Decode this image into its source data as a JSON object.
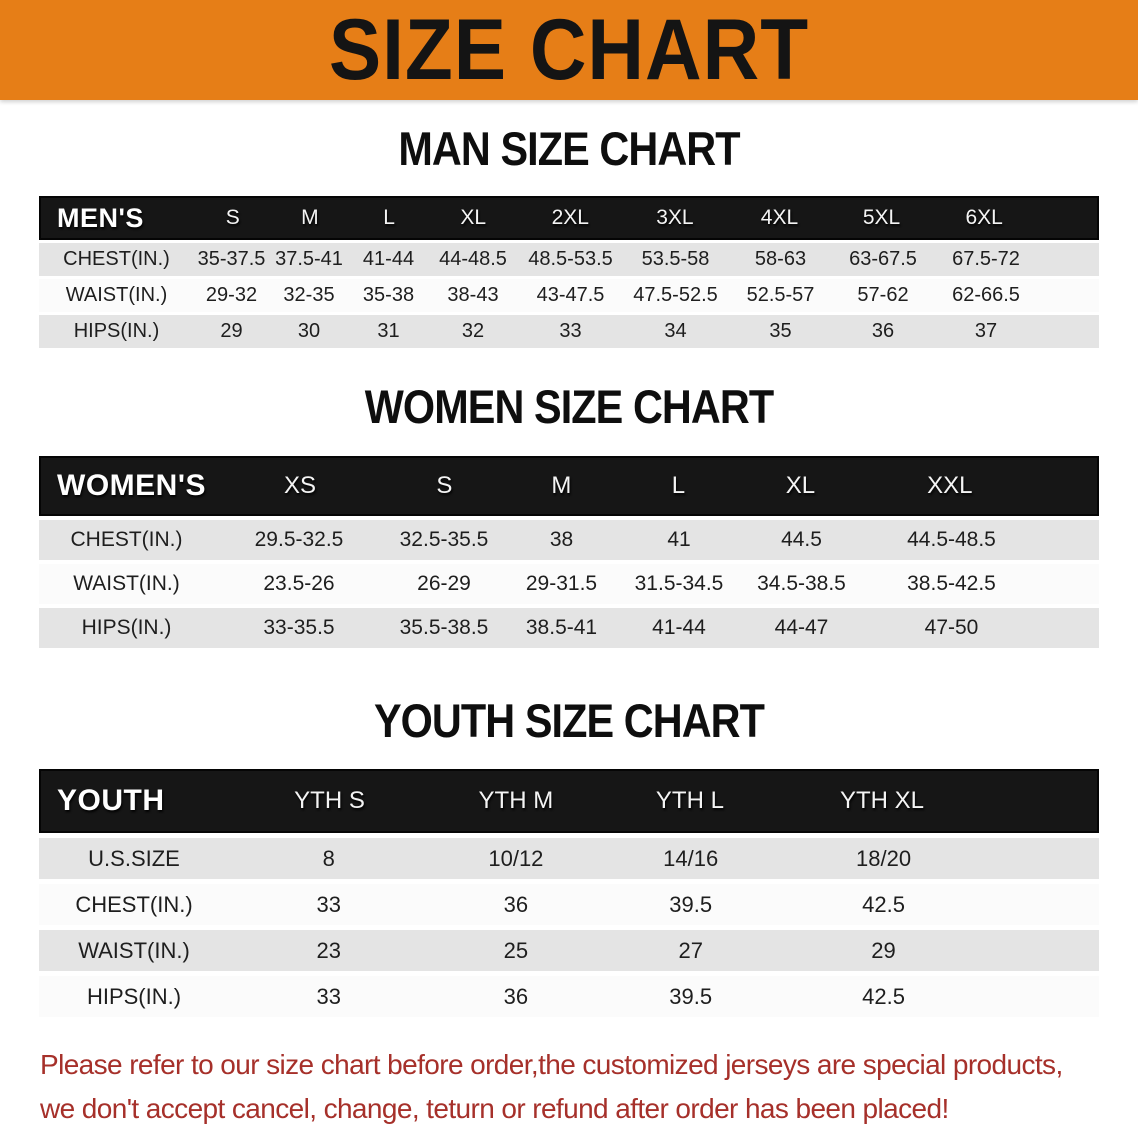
{
  "banner": {
    "title": "SIZE CHART"
  },
  "colors": {
    "banner_bg": "#E67E17",
    "table_header_bg": "#161616",
    "row_alt_bg": "#E4E4E4",
    "note_color": "#A6302A"
  },
  "sections": [
    {
      "id": "men",
      "title": "MAN SIZE CHART",
      "header_label": "MEN'S",
      "sizes": [
        "S",
        "M",
        "L",
        "XL",
        "2XL",
        "3XL",
        "4XL",
        "5XL",
        "6XL"
      ],
      "rows": [
        {
          "label": "CHEST(IN.)",
          "values": [
            "35-37.5",
            "37.5-41",
            "41-44",
            "44-48.5",
            "48.5-53.5",
            "53.5-58",
            "58-63",
            "63-67.5",
            "67.5-72"
          ]
        },
        {
          "label": "WAIST(IN.)",
          "values": [
            "29-32",
            "32-35",
            "35-38",
            "38-43",
            "43-47.5",
            "47.5-52.5",
            "52.5-57",
            "57-62",
            "62-66.5"
          ]
        },
        {
          "label": "HIPS(IN.)",
          "values": [
            "29",
            "30",
            "31",
            "32",
            "33",
            "34",
            "35",
            "36",
            "37"
          ]
        }
      ]
    },
    {
      "id": "women",
      "title": "WOMEN SIZE CHART",
      "header_label": "WOMEN'S",
      "sizes": [
        "XS",
        "S",
        "M",
        "L",
        "XL",
        "XXL"
      ],
      "rows": [
        {
          "label": "CHEST(IN.)",
          "values": [
            "29.5-32.5",
            "32.5-35.5",
            "38",
            "41",
            "44.5",
            "44.5-48.5"
          ]
        },
        {
          "label": "WAIST(IN.)",
          "values": [
            "23.5-26",
            "26-29",
            "29-31.5",
            "31.5-34.5",
            "34.5-38.5",
            "38.5-42.5"
          ]
        },
        {
          "label": "HIPS(IN.)",
          "values": [
            "33-35.5",
            "35.5-38.5",
            "38.5-41",
            "41-44",
            "44-47",
            "47-50"
          ]
        }
      ]
    },
    {
      "id": "youth",
      "title": "YOUTH SIZE CHART",
      "header_label": "YOUTH",
      "sizes": [
        "YTH S",
        "YTH M",
        "YTH L",
        "YTH XL"
      ],
      "rows": [
        {
          "label": "U.S.SIZE",
          "values": [
            "8",
            "10/12",
            "14/16",
            "18/20"
          ]
        },
        {
          "label": "CHEST(IN.)",
          "values": [
            "33",
            "36",
            "39.5",
            "42.5"
          ]
        },
        {
          "label": "WAIST(IN.)",
          "values": [
            "23",
            "25",
            "27",
            "29"
          ]
        },
        {
          "label": "HIPS(IN.)",
          "values": [
            "33",
            "36",
            "39.5",
            "42.5"
          ]
        }
      ]
    }
  ],
  "footer": {
    "lines": [
      "Please refer to our size chart before order,the customized jerseys are special products,",
      "we don't accept cancel, change, teturn or refund after order has been placed!"
    ]
  }
}
